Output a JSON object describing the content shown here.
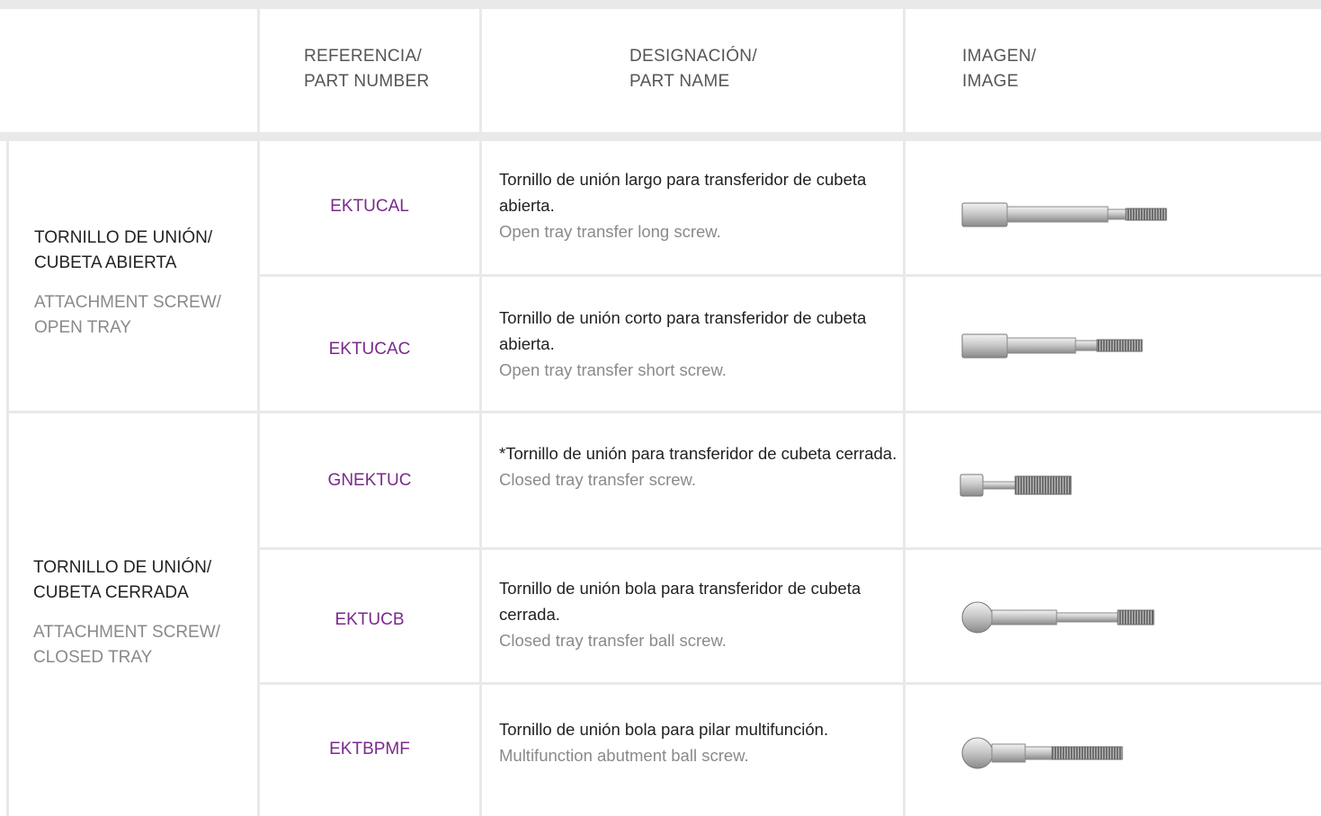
{
  "header": {
    "columns": [
      [
        "REFERENCIA/",
        "PART NUMBER"
      ],
      [
        "DESIGNACIÓN/",
        "PART NAME"
      ],
      [
        "IMAGEN/",
        "IMAGE"
      ]
    ]
  },
  "groups": [
    {
      "label_es": [
        "TORNILLO DE UNIÓN/",
        "CUBETA ABIERTA"
      ],
      "label_en": [
        "ATTACHMENT SCREW/",
        "OPEN TRAY"
      ],
      "items": [
        {
          "part_number": "EKTUCAL",
          "name_es": "Tornillo de unión largo para transferidor de cubeta abierta.",
          "name_en": "Open tray transfer long screw."
        },
        {
          "part_number": "EKTUCAC",
          "name_es": "Tornillo de unión corto para transferidor de cubeta abierta.",
          "name_en": "Open tray transfer short screw."
        }
      ]
    },
    {
      "label_es": [
        "TORNILLO DE UNIÓN/",
        "CUBETA CERRADA"
      ],
      "label_en": [
        "ATTACHMENT SCREW/",
        "CLOSED TRAY"
      ],
      "items": [
        {
          "part_number": "GNEKTUC",
          "name_es": "*Tornillo de unión para transferidor de cubeta cerrada.",
          "name_en": "Closed tray transfer screw."
        },
        {
          "part_number": "EKTUCB",
          "name_es": "Tornillo de unión bola para transferidor de cubeta cerrada.",
          "name_en": "Closed tray transfer ball screw."
        },
        {
          "part_number": "EKTBPMF",
          "name_es": "Tornillo de unión bola para pilar multifunción.",
          "name_en": "Multifunction abutment ball screw."
        }
      ]
    }
  ]
}
